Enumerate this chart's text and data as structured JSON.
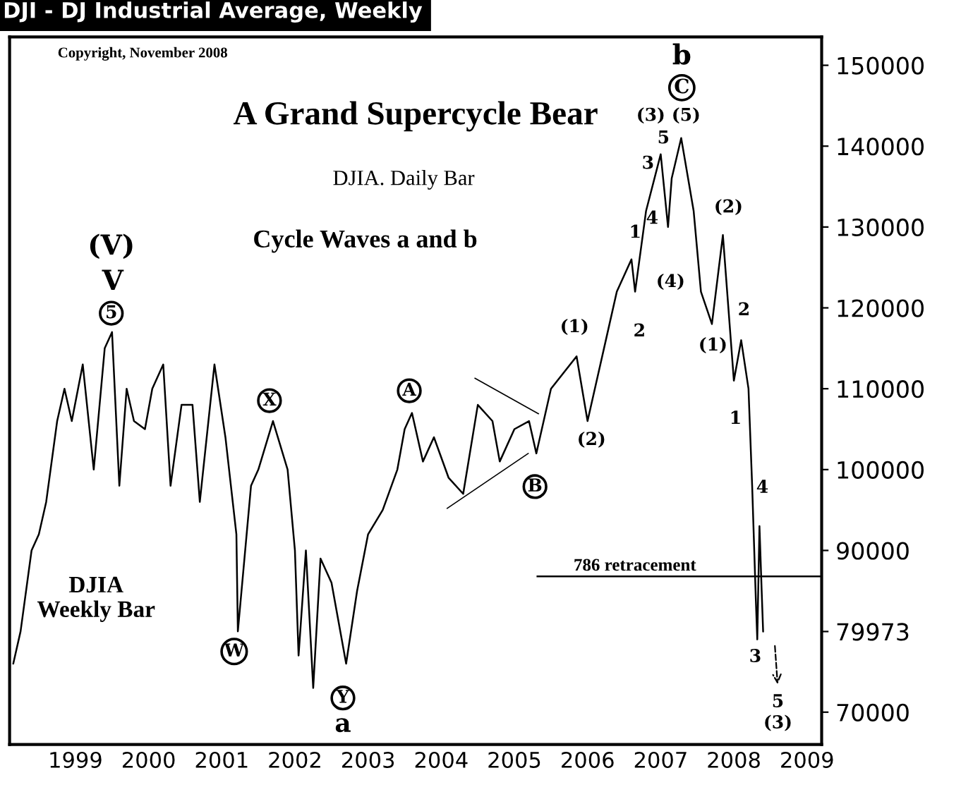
{
  "chart_data": {
    "type": "line",
    "title": "A Grand Supercycle Bear",
    "subtitle": "DJIA. Daily Bar",
    "annotations": [
      "DJI - DJ Industrial Average, Weekly",
      "Copyright, November 2008",
      "Cycle Waves a and b",
      "DJIA\nWeekly Bar",
      "(V)",
      "V",
      "5",
      "X",
      "W",
      "Y",
      "a",
      "A",
      "B",
      "(1)",
      "(2)",
      "1",
      "2",
      "3",
      "5",
      "(3)",
      "(5)",
      "4",
      "(4)",
      "C",
      "b",
      "(1)",
      "(2)",
      "2",
      "1",
      "4",
      "3",
      "5",
      "(3)"
    ],
    "series": [
      {
        "color": "#000000",
        "x": [
          1998.65,
          1998.75,
          1998.9,
          1999.0,
          1999.1,
          1999.25,
          1999.35,
          1999.45,
          1999.6,
          1999.75,
          1999.9,
          2000.0,
          2000.1,
          2000.2,
          2000.3,
          2000.45,
          2000.55,
          2000.7,
          2000.8,
          2000.95,
          2001.1,
          2001.2,
          2001.4,
          2001.55,
          2001.7,
          2001.72,
          2001.9,
          2002.0,
          2002.2,
          2002.4,
          2002.5,
          2002.55,
          2002.65,
          2002.75,
          2002.85,
          2003.0,
          2003.2,
          2003.35,
          2003.5,
          2003.7,
          2003.9,
          2004.0,
          2004.1,
          2004.25,
          2004.4,
          2004.6,
          2004.8,
          2005.0,
          2005.2,
          2005.3,
          2005.5,
          2005.7,
          2005.8,
          2006.0,
          2006.35,
          2006.5,
          2006.75,
          2006.9,
          2007.1,
          2007.15,
          2007.3,
          2007.5,
          2007.6,
          2007.65,
          2007.78,
          2007.95,
          2008.05,
          2008.2,
          2008.35,
          2008.5,
          2008.6,
          2008.7,
          2008.75,
          2008.8,
          2008.82,
          2008.85,
          2008.88,
          2008.9
        ],
        "values": [
          76000,
          80000,
          90000,
          92000,
          96000,
          106000,
          110000,
          106000,
          113000,
          100000,
          115000,
          117000,
          98000,
          110000,
          106000,
          105000,
          110000,
          113000,
          98000,
          108000,
          108000,
          96000,
          113000,
          104000,
          92000,
          80000,
          98000,
          100000,
          106000,
          100000,
          90000,
          77000,
          90000,
          73000,
          89000,
          86000,
          76000,
          85000,
          92000,
          95000,
          100000,
          105000,
          107000,
          101000,
          104000,
          99000,
          97000,
          108000,
          106000,
          101000,
          105000,
          106000,
          102000,
          110000,
          114000,
          106000,
          116000,
          122000,
          126000,
          122000,
          132000,
          139000,
          130000,
          136000,
          141000,
          132000,
          122000,
          118000,
          129000,
          111000,
          116000,
          110000,
          98000,
          84000,
          79000,
          93000,
          85000,
          79973
        ]
      },
      {
        "color": "#000000",
        "x": [
          2004.96,
          2005.83
        ],
        "values": [
          111300,
          106900
        ]
      },
      {
        "color": "#000000",
        "x": [
          2004.58,
          2005.69
        ],
        "values": [
          95200,
          102000
        ]
      }
    ],
    "ref_lines": [
      {
        "axis": "y",
        "value": 86800,
        "label": "786 retracement",
        "color": "#000000"
      }
    ],
    "xlim": [
      1998.6,
      2009.7
    ],
    "xticks": [
      {
        "value": 1999.5,
        "label": "1999"
      },
      {
        "value": 2000.5,
        "label": "2000"
      },
      {
        "value": 2001.5,
        "label": "2001"
      },
      {
        "value": 2002.5,
        "label": "2002"
      },
      {
        "value": 2003.5,
        "label": "2003"
      },
      {
        "value": 2004.5,
        "label": "2004"
      },
      {
        "value": 2005.5,
        "label": "2005"
      },
      {
        "value": 2006.5,
        "label": "2006"
      },
      {
        "value": 2007.5,
        "label": "2007"
      },
      {
        "value": 2008.5,
        "label": "2008"
      },
      {
        "value": 2009.5,
        "label": "2009"
      }
    ],
    "ylim": [
      66000,
      153500
    ],
    "yticks": [
      70000,
      79973,
      90000,
      100000,
      110000,
      120000,
      130000,
      140000,
      150000
    ],
    "grid": false
  }
}
